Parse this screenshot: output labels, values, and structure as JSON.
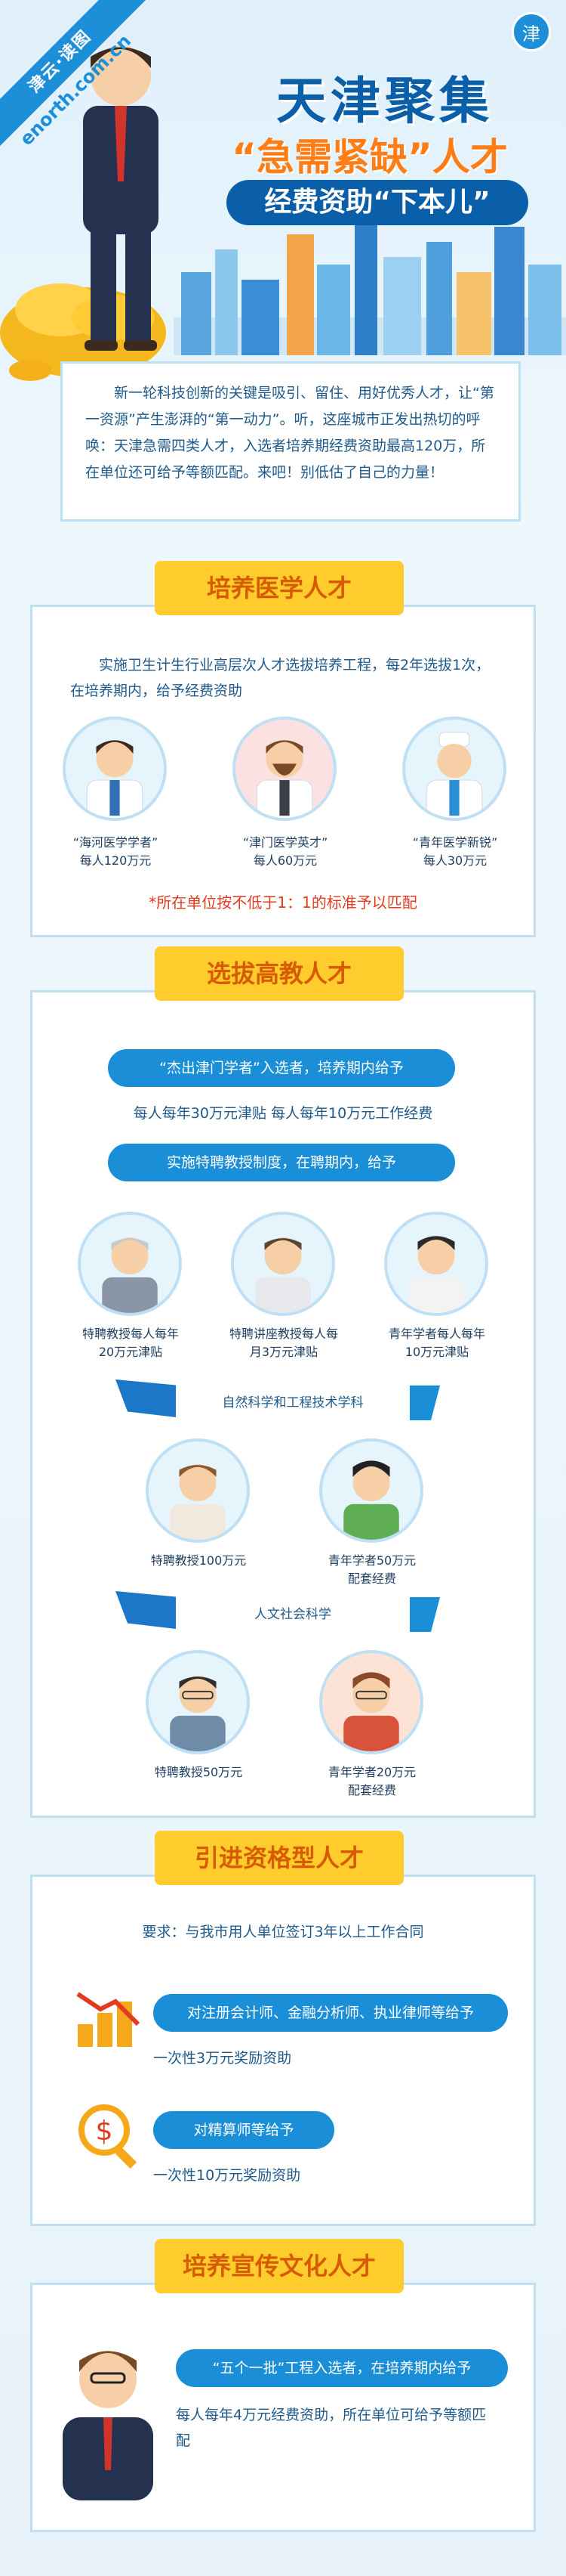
{
  "header": {
    "brand_tag": "津云·读图",
    "brand_url": "enorth.com.cn",
    "logo_icon": "津",
    "title_line1": "天津聚集",
    "title_line2": "“急需紧缺”人才",
    "title_line3": "经费资助“下本儿”"
  },
  "intro": "新一轮科技创新的关键是吸引、留住、用好优秀人才，让“第一资源”产生澎湃的“第一动力”。听，这座城市正发出热切的呼唤：天津急需四类人才，入选者培养期经费资助最高120万，所在单位还可给予等额匹配。来吧！别低估了自己的力量！",
  "medical": {
    "title": "培养医学人才",
    "desc": "实施卫生计生行业高层次人才选拔培养工程，每2年选拔1次，在培养期内，给予经费资助",
    "people": [
      {
        "name": "“海河医学学者”",
        "amount": "每人120万元"
      },
      {
        "name": "“津门医学英才”",
        "amount": "每人60万元"
      },
      {
        "name": "“青年医学新锐”",
        "amount": "每人30万元"
      }
    ],
    "note": "*所在单位按不低于1：1的标准予以匹配"
  },
  "teachers": {
    "title": "选拔高教人才",
    "pill1": "“杰出津门学者”入选者，培养期内给予",
    "line1": "每人每年30万元津贴 每人每年10万元工作经费",
    "pill2": "实施特聘教授制度，在聘期内，给予",
    "people": [
      {
        "l1": "特聘教授每人每年",
        "l2": "20万元津贴"
      },
      {
        "l1": "特聘讲座教授每人每",
        "l2": "月3万元津贴"
      },
      {
        "l1": "青年学者每人每年",
        "l2": "10万元津贴"
      }
    ],
    "ribbon1": "自然科学和工程技术学科",
    "sci": [
      {
        "l1": "特聘教授100万元",
        "l2": ""
      },
      {
        "l1": "青年学者50万元",
        "l2": "配套经费"
      }
    ],
    "ribbon2": "人文社会科学",
    "hum": [
      {
        "l1": "特聘教授50万元",
        "l2": ""
      },
      {
        "l1": "青年学者20万元",
        "l2": "配套经费"
      }
    ]
  },
  "qualified": {
    "title": "引进资格型人才",
    "requirement": "要求：与我市用人单位签订3年以上工作合同",
    "pill1": "对注册会计师、金融分析师、执业律师等给予",
    "reward1": "一次性3万元奖励资助",
    "pill2": "对精算师等给予",
    "reward2": "一次性10万元奖励资助"
  },
  "culture": {
    "title": "培养宣传文化人才",
    "pill": "“五个一批”工程入选者，在培养期内给予",
    "desc": "每人每年4万元经费资助，所在单位可给予等额匹配"
  }
}
